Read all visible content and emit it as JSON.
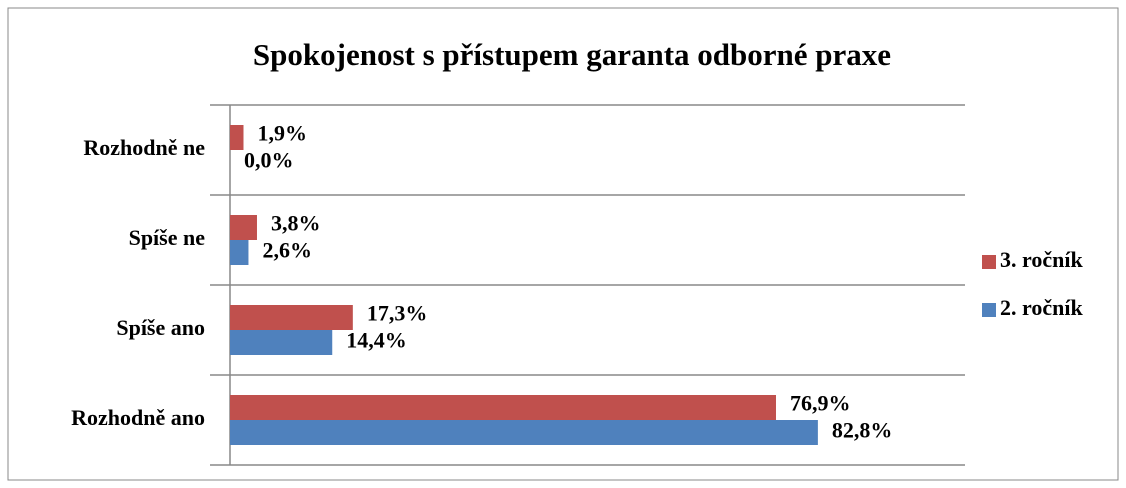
{
  "chart_data": {
    "type": "hbar",
    "title": "Spokojenost s přístupem garanta odborné praxe",
    "categories": [
      "Rozhodně ne",
      "Spíše ne",
      "Spíše ano",
      "Rozhodně ano"
    ],
    "series": [
      {
        "name": "3. ročník",
        "color": "#c0504d",
        "values": [
          1.9,
          3.8,
          17.3,
          76.9
        ],
        "value_labels": [
          "1,9%",
          "3,8%",
          "17,3%",
          "76,9%"
        ]
      },
      {
        "name": "2. ročník",
        "color": "#4f81bd",
        "values": [
          0,
          2.6,
          14.4,
          82.8
        ],
        "value_labels": [
          "0,0%",
          "2,6%",
          "14,4%",
          "82,8%"
        ]
      }
    ],
    "xlim": [
      0,
      100
    ],
    "legend": "right",
    "grid": true
  }
}
